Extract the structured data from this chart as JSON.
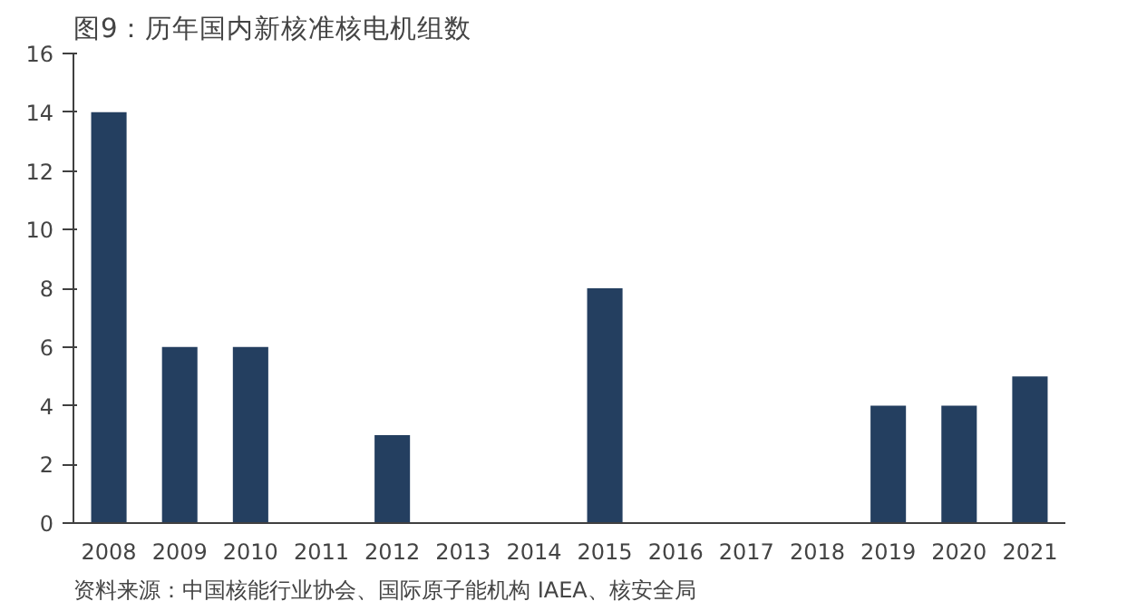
{
  "chart_data": {
    "type": "bar",
    "title": "图9：历年国内新核准核电机组数",
    "categories": [
      "2008",
      "2009",
      "2010",
      "2011",
      "2012",
      "2013",
      "2014",
      "2015",
      "2016",
      "2017",
      "2018",
      "2019",
      "2020",
      "2021"
    ],
    "values": [
      14,
      6,
      6,
      0,
      3,
      0,
      0,
      8,
      0,
      0,
      0,
      4,
      4,
      5
    ],
    "color": "#243f60",
    "ylim": [
      0,
      16
    ],
    "yticks": [
      0,
      2,
      4,
      6,
      8,
      10,
      12,
      14,
      16
    ],
    "grid": false,
    "annotations": [
      "资料来源：中国核能行业协会、国际原子能机构 IAEA、核安全局"
    ]
  }
}
